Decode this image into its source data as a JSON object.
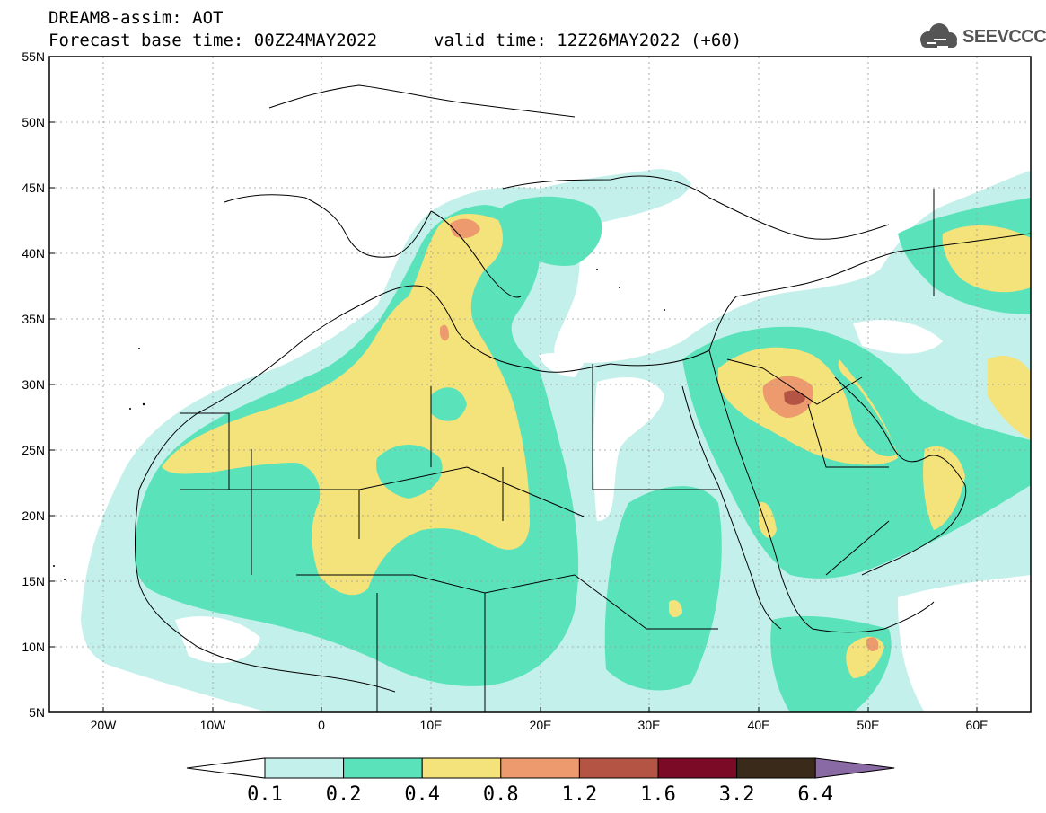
{
  "header": {
    "title": "DREAM8-assim: AOT",
    "base_time": "Forecast base time: 00Z24MAY2022",
    "valid_time": "valid time: 12Z26MAY2022 (+60)"
  },
  "logo": {
    "text": "SEEVCCC",
    "icon": "cloud-icon"
  },
  "map": {
    "region": "North Africa, Middle East, Southern Europe",
    "lon_range": [
      -25,
      65
    ],
    "lat_range": [
      5,
      55
    ],
    "lon_ticks": [
      "20W",
      "10W",
      "0",
      "10E",
      "20E",
      "30E",
      "40E",
      "50E",
      "60E"
    ],
    "lat_ticks": [
      "55N",
      "50N",
      "45N",
      "40N",
      "35N",
      "30N",
      "25N",
      "20N",
      "15N",
      "10N",
      "5N"
    ]
  },
  "colorbar": {
    "labels": [
      "0.1",
      "0.2",
      "0.4",
      "0.8",
      "1.2",
      "1.6",
      "3.2",
      "6.4"
    ],
    "colors": [
      "#c4f0eb",
      "#5ae3bb",
      "#f4e27a",
      "#ec9a6e",
      "#b35445",
      "#7a0a26",
      "#3a2a1a",
      "#8a6aa4"
    ]
  }
}
